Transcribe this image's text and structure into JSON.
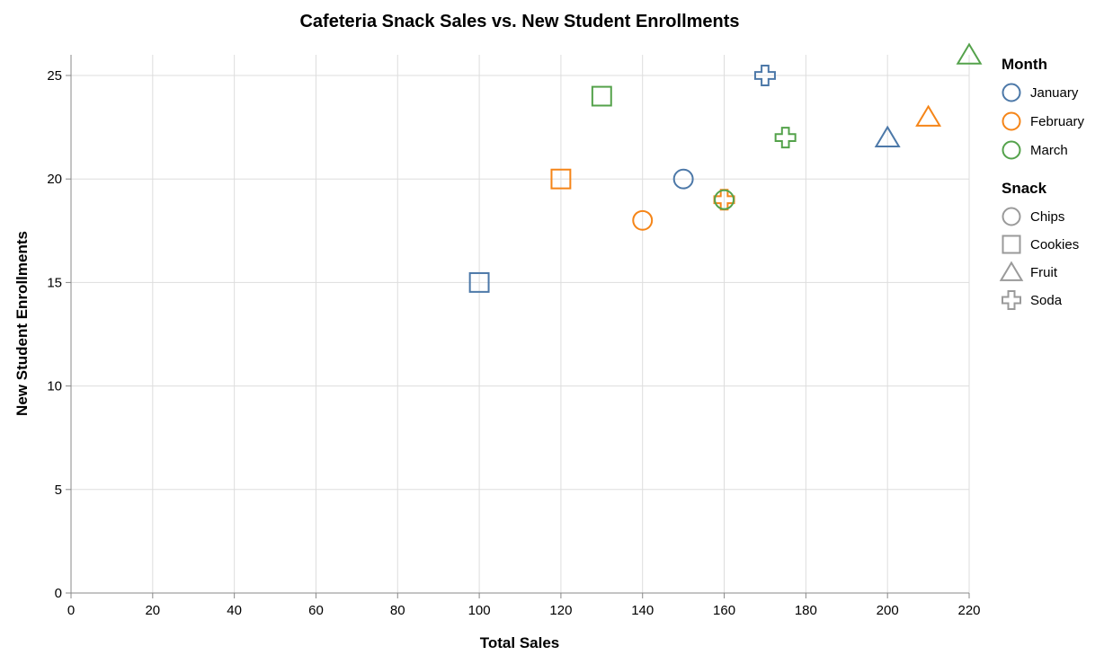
{
  "chart_data": {
    "type": "scatter",
    "title": "Cafeteria Snack Sales vs. New Student Enrollments",
    "xlabel": "Total Sales",
    "ylabel": "New Student Enrollments",
    "xlim": [
      0,
      220
    ],
    "ylim": [
      0,
      26
    ],
    "x_ticks": [
      0,
      20,
      40,
      60,
      80,
      100,
      120,
      140,
      160,
      180,
      200,
      220
    ],
    "y_ticks": [
      0,
      5,
      10,
      15,
      20,
      25
    ],
    "grid": true,
    "legend_placement": "right",
    "color_legend": {
      "title": "Month",
      "entries": [
        {
          "label": "January",
          "color": "#4c78a8"
        },
        {
          "label": "February",
          "color": "#f58518"
        },
        {
          "label": "March",
          "color": "#54a24b"
        }
      ]
    },
    "shape_legend": {
      "title": "Snack",
      "entries": [
        {
          "label": "Chips",
          "shape": "circle"
        },
        {
          "label": "Cookies",
          "shape": "square"
        },
        {
          "label": "Fruit",
          "shape": "triangle"
        },
        {
          "label": "Soda",
          "shape": "cross"
        }
      ]
    },
    "points": [
      {
        "month": "January",
        "snack": "Chips",
        "x": 150,
        "y": 20
      },
      {
        "month": "January",
        "snack": "Cookies",
        "x": 100,
        "y": 15
      },
      {
        "month": "January",
        "snack": "Fruit",
        "x": 200,
        "y": 22
      },
      {
        "month": "January",
        "snack": "Soda",
        "x": 170,
        "y": 25
      },
      {
        "month": "February",
        "snack": "Chips",
        "x": 140,
        "y": 18
      },
      {
        "month": "February",
        "snack": "Cookies",
        "x": 120,
        "y": 20
      },
      {
        "month": "February",
        "snack": "Fruit",
        "x": 210,
        "y": 23
      },
      {
        "month": "February",
        "snack": "Soda",
        "x": 160,
        "y": 19
      },
      {
        "month": "March",
        "snack": "Chips",
        "x": 160,
        "y": 19
      },
      {
        "month": "March",
        "snack": "Cookies",
        "x": 130,
        "y": 24
      },
      {
        "month": "March",
        "snack": "Fruit",
        "x": 220,
        "y": 26
      },
      {
        "month": "March",
        "snack": "Soda",
        "x": 175,
        "y": 22
      }
    ]
  }
}
